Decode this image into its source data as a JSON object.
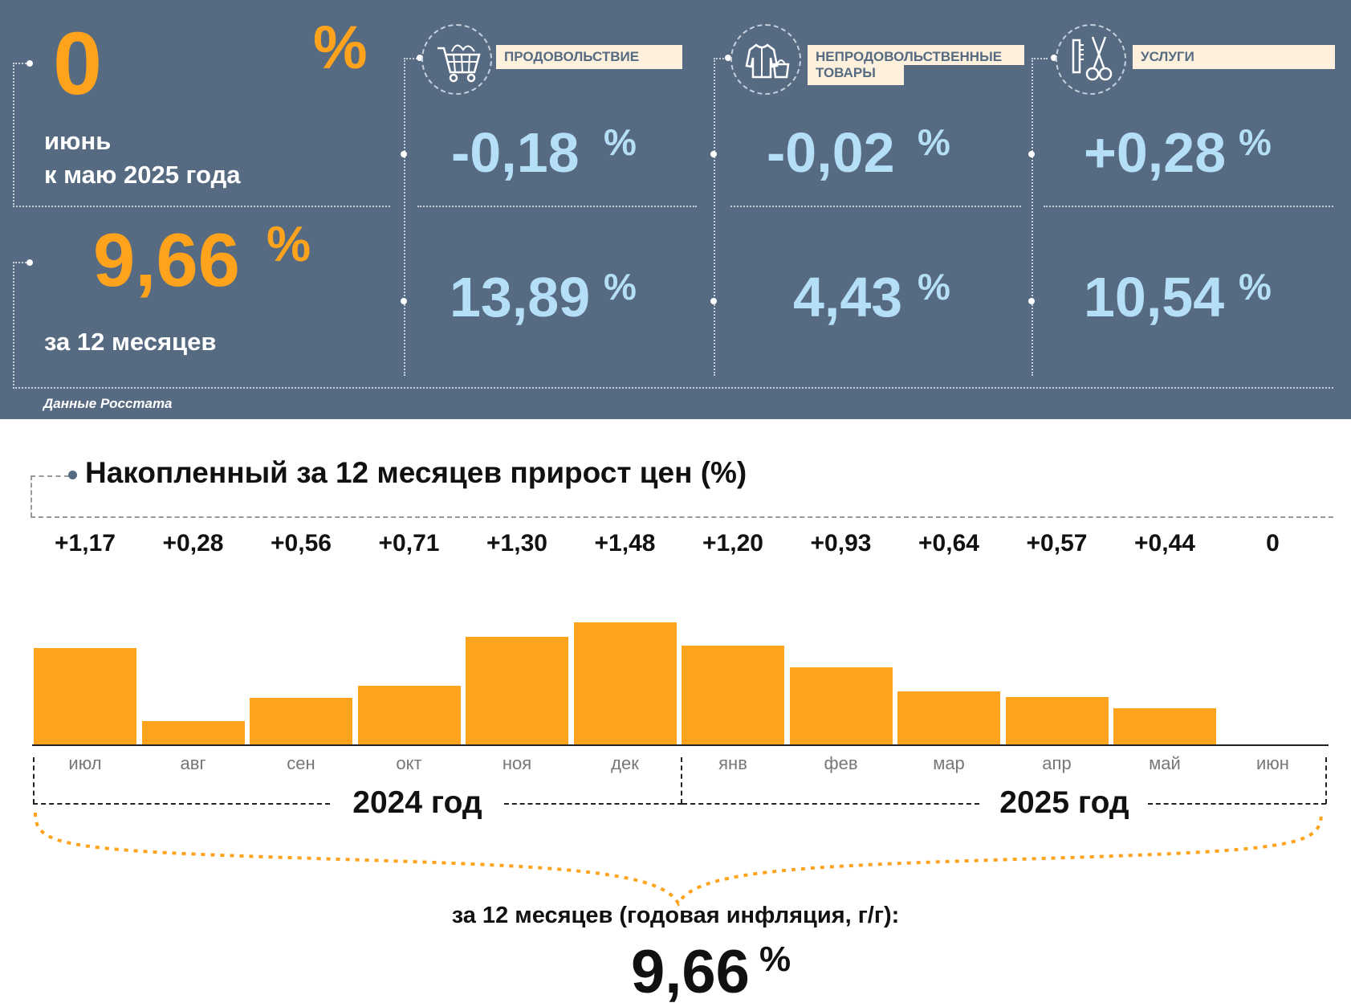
{
  "summary": {
    "month_value": "0",
    "month_pct": "%",
    "month_label_1": "июнь",
    "month_label_2": "к маю 2025 года",
    "year_value": "9,66",
    "year_pct": "%",
    "year_label": "за 12 месяцев",
    "source": "Данные Росстата"
  },
  "categories": [
    {
      "icon": "shopping-cart-icon",
      "label_1": "ПРОДОВОЛЬСТВИЕ",
      "label_2": "",
      "month_value": "-0,18",
      "year_value": "13,89",
      "pct": "%"
    },
    {
      "icon": "clothing-bag-icon",
      "label_1": "НЕПРОДОВОЛЬСТВЕННЫЕ",
      "label_2": "ТОВАРЫ",
      "month_value": "-0,02",
      "year_value": "4,43",
      "pct": "%"
    },
    {
      "icon": "scissors-comb-icon",
      "label_1": "УСЛУГИ",
      "label_2": "",
      "month_value": "+0,28",
      "year_value": "10,54",
      "pct": "%"
    }
  ],
  "chart_title": "Накопленный за 12 месяцев прирост цен (%)",
  "chart_data": {
    "type": "bar",
    "categories": [
      "июл",
      "авг",
      "сен",
      "окт",
      "ноя",
      "дек",
      "янв",
      "фев",
      "мар",
      "апр",
      "май",
      "июн"
    ],
    "values": [
      1.17,
      0.28,
      0.56,
      0.71,
      1.3,
      1.48,
      1.2,
      0.93,
      0.64,
      0.57,
      0.44,
      0
    ],
    "value_labels": [
      "+1,17",
      "+0,28",
      "+0,56",
      "+0,71",
      "+1,30",
      "+1,48",
      "+1,20",
      "+0,93",
      "+0,64",
      "+0,57",
      "+0,44",
      "0"
    ],
    "year_groups": [
      {
        "label": "2024 год",
        "months": 6
      },
      {
        "label": "2025 год",
        "months": 6
      }
    ],
    "bar_color": "#ffa31c"
  },
  "footer": {
    "label": "за 12 месяцев (годовая инфляция, г/г):",
    "value": "9,66",
    "pct": "%"
  }
}
